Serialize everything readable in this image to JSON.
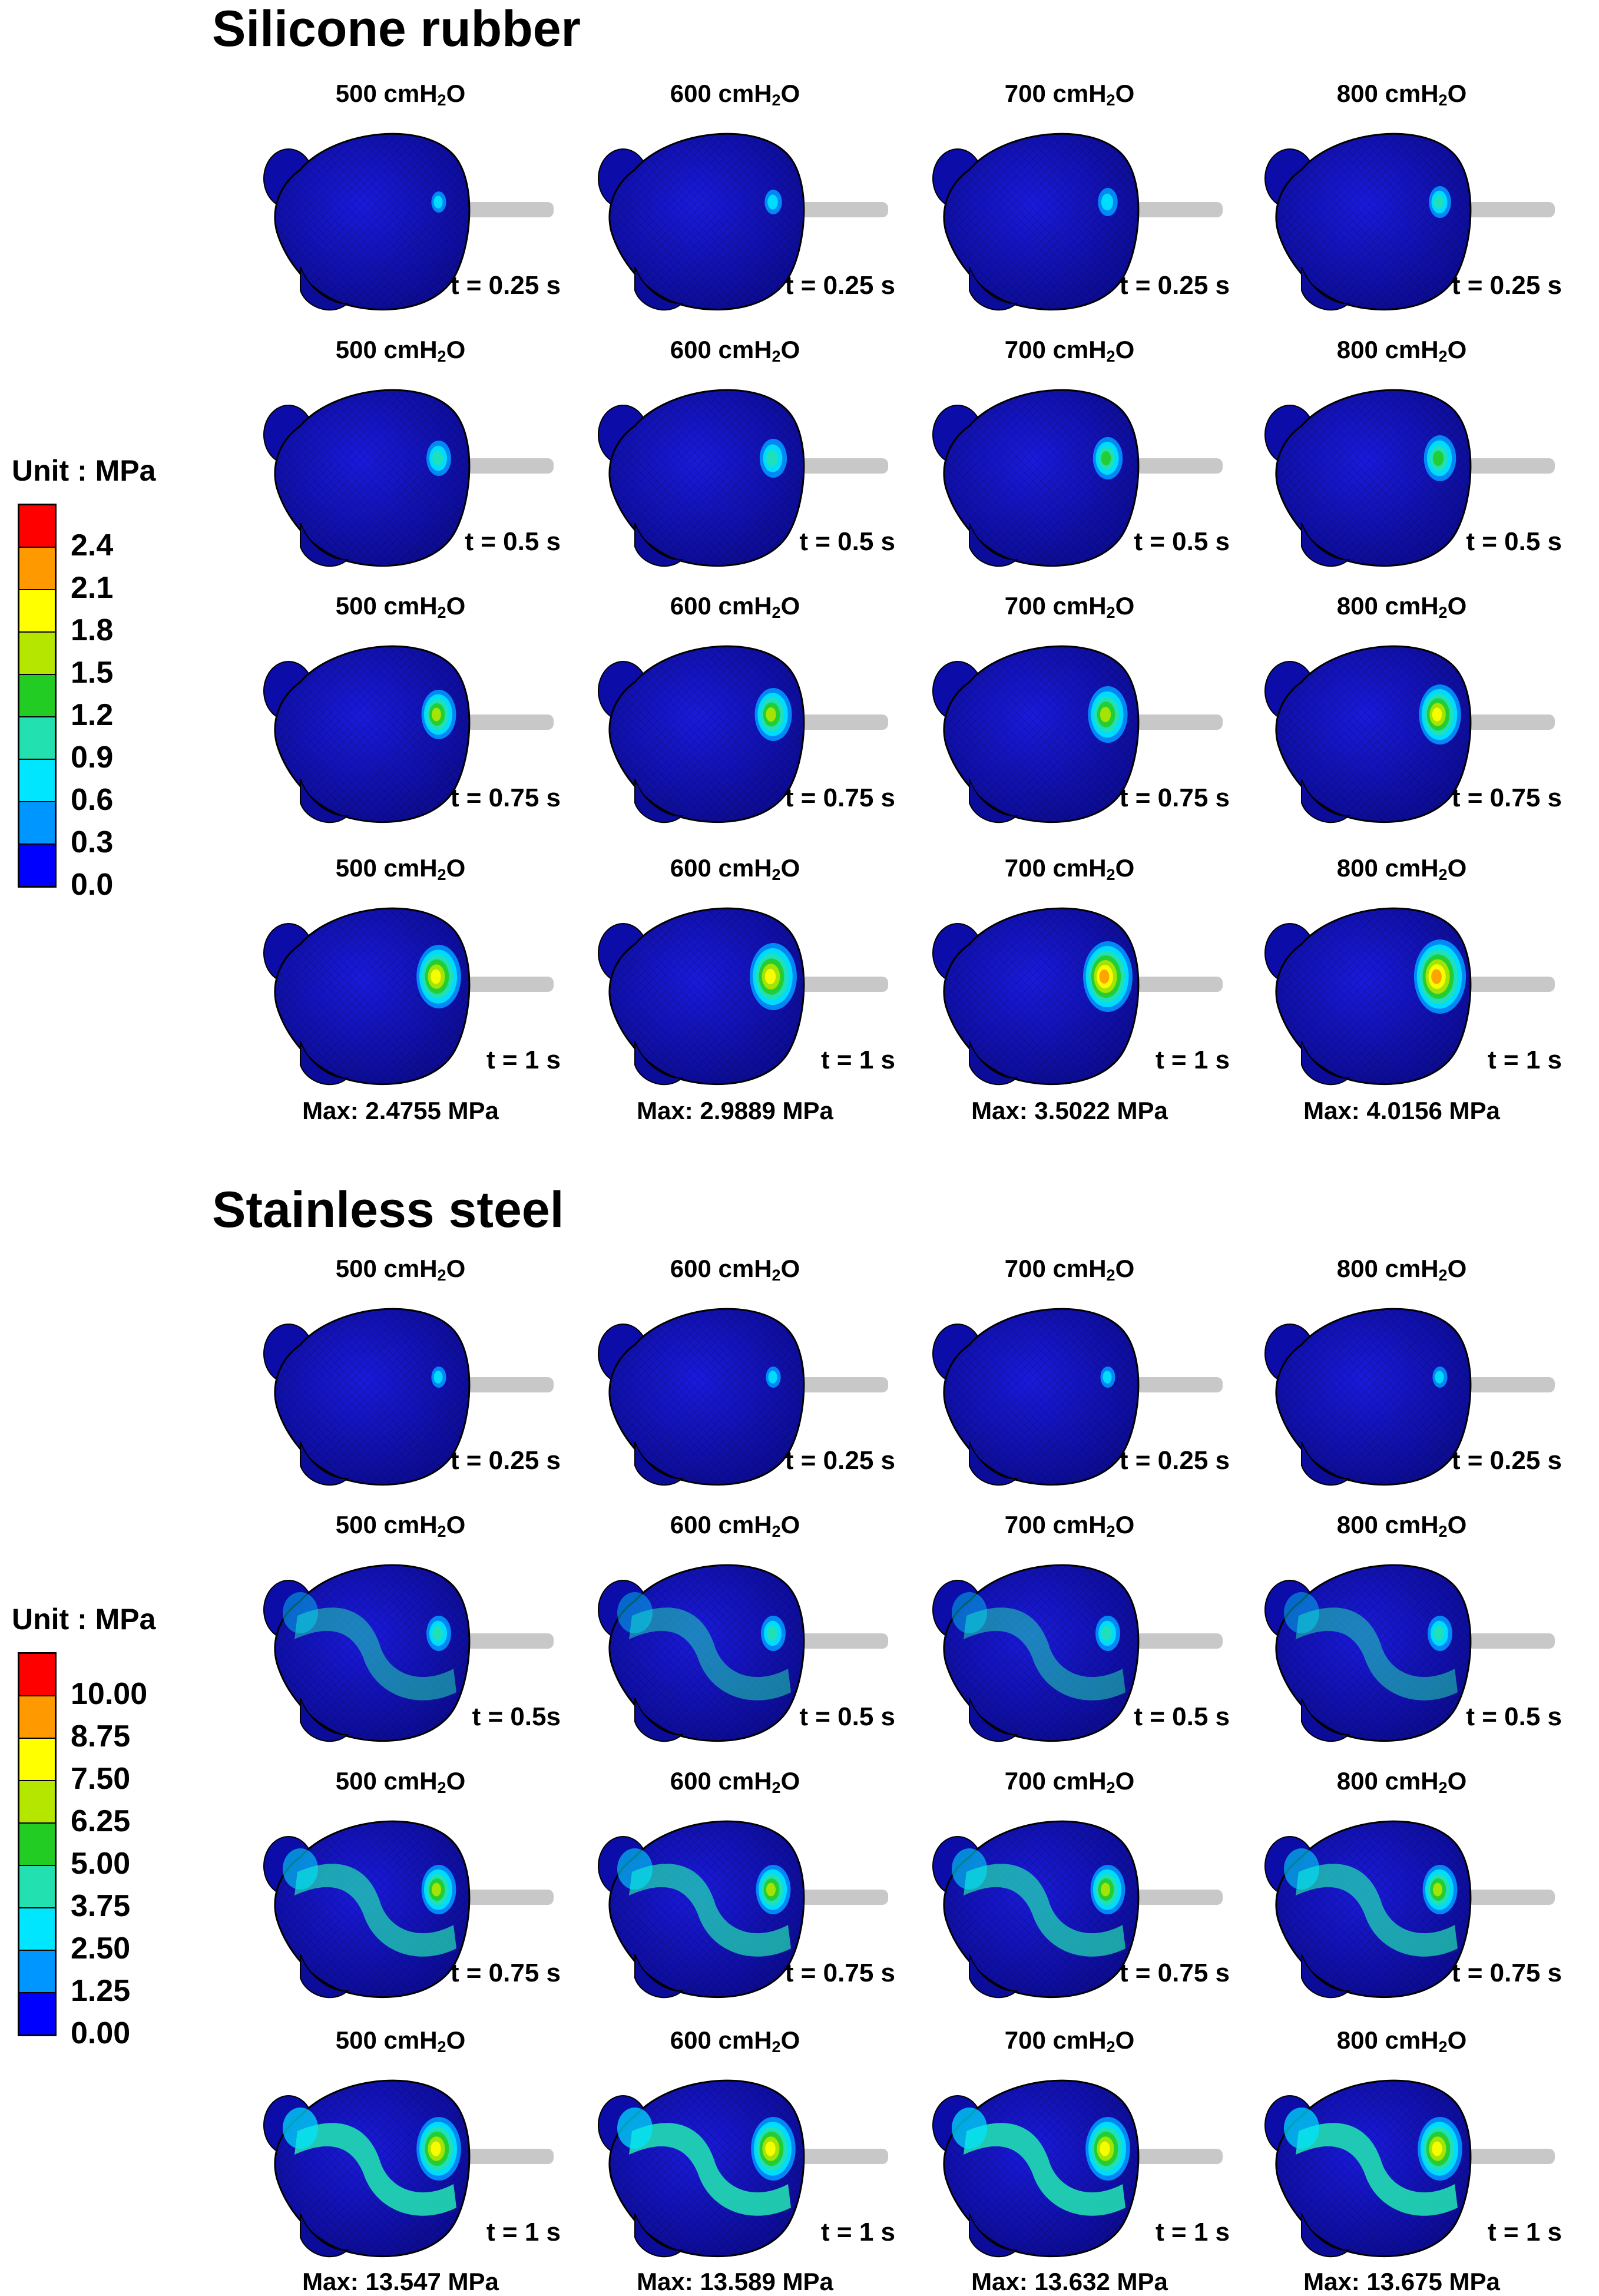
{
  "sections": [
    {
      "title": "Silicone rubber",
      "legend": {
        "unit": "Unit : MPa",
        "ticks": [
          "2.4",
          "2.1",
          "1.8",
          "1.5",
          "1.2",
          "0.9",
          "0.6",
          "0.3",
          "0.0"
        ],
        "colors": [
          "#ff0000",
          "#ff9900",
          "#ffff00",
          "#b4e600",
          "#22cc22",
          "#22e0b0",
          "#00e6ff",
          "#0096ff",
          "#0000ff"
        ]
      },
      "pressures": [
        "500 cmH",
        "600 cmH",
        "700 cmH",
        "800 cmH"
      ],
      "pressure_suffix": "O",
      "pressure_sub": "2",
      "times": [
        [
          "t = 0.25 s",
          "t = 0.25 s",
          "t = 0.25 s",
          "t = 0.25 s"
        ],
        [
          "t = 0.5 s",
          "t = 0.5 s",
          "t = 0.5 s",
          "t = 0.5 s"
        ],
        [
          "t = 0.75 s",
          "t = 0.75 s",
          "t = 0.75 s",
          "t = 0.75 s"
        ],
        [
          "t = 1 s",
          "t = 1 s",
          "t = 1 s",
          "t = 1 s"
        ]
      ],
      "max": [
        "Max: 2.4755 MPa",
        "Max: 2.9889 MPa",
        "Max: 3.5022 MPa",
        "Max: 4.0156 MPa"
      ]
    },
    {
      "title": "Stainless steel",
      "legend": {
        "unit": "Unit : MPa",
        "ticks": [
          "10.00",
          "8.75",
          "7.50",
          "6.25",
          "5.00",
          "3.75",
          "2.50",
          "1.25",
          "0.00"
        ],
        "colors": [
          "#ff0000",
          "#ff9900",
          "#ffff00",
          "#b4e600",
          "#22cc22",
          "#22e0b0",
          "#00e6ff",
          "#0096ff",
          "#0000ff"
        ]
      },
      "pressures": [
        "500 cmH",
        "600 cmH",
        "700 cmH",
        "800 cmH"
      ],
      "pressure_suffix": "O",
      "pressure_sub": "2",
      "times": [
        [
          "t = 0.25 s",
          "t = 0.25 s",
          "t = 0.25 s",
          "t = 0.25 s"
        ],
        [
          "t = 0.5s",
          "t = 0.5 s",
          "t = 0.5 s",
          "t = 0.5 s"
        ],
        [
          "t = 0.75 s",
          "t = 0.75 s",
          "t = 0.75 s",
          "t = 0.75 s"
        ],
        [
          "t = 1 s",
          "t = 1 s",
          "t = 1 s",
          "t = 1 s"
        ]
      ],
      "max": [
        "Max: 13.547 MPa",
        "Max: 13.589 MPa",
        "Max: 13.632 MPa",
        "Max: 13.675 MPa"
      ]
    }
  ]
}
